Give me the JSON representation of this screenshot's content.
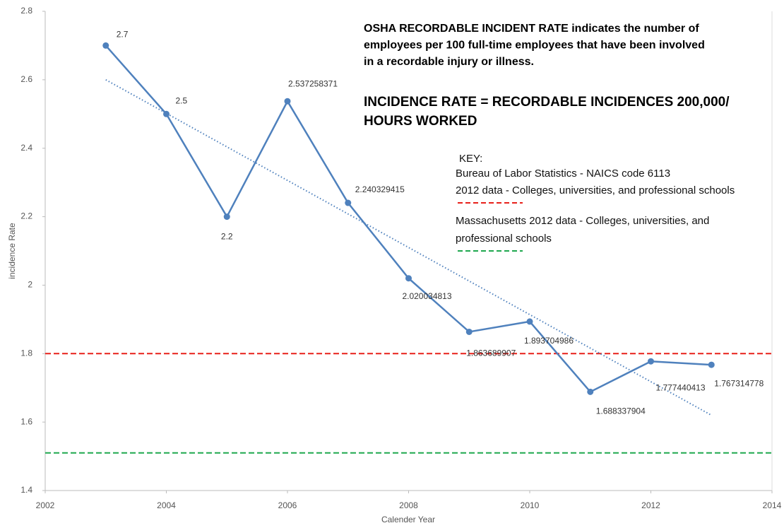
{
  "chart_data": {
    "type": "line",
    "x_label": "Calender Year",
    "y_label": "incidence Rate",
    "x": [
      2003,
      2004,
      2005,
      2006,
      2007,
      2008,
      2009,
      2010,
      2011,
      2012,
      2013
    ],
    "series": [
      {
        "color": "#4f81bd",
        "values": [
          2.7,
          2.5,
          2.2,
          2.537258371,
          2.240329415,
          2.020034813,
          1.863689907,
          1.893704986,
          1.688337904,
          1.777440413,
          1.767314778
        ]
      }
    ],
    "trendline": {
      "x": [
        2003,
        2013
      ],
      "values": [
        2.6,
        1.62
      ],
      "color": "#4f81bd"
    },
    "reference_lines": [
      {
        "value": 1.8,
        "color": "#e8201a",
        "label": [
          "Bureau of Labor Statistics - NAICS code 6113",
          "2012 data - Colleges, universities, and professional schools"
        ]
      },
      {
        "value": 1.51,
        "color": "#1fa84f",
        "label": [
          "Massachusetts 2012 data - Colleges, universities, and",
          "professional schools"
        ]
      }
    ],
    "key_title": "KEY:",
    "description": [
      "OSHA RECORDABLE INCIDENT RATE indicates the number of",
      "employees per 100 full-time employees that have been involved",
      "in a recordable injury or illness."
    ],
    "formula": [
      "INCIDENCE RATE = RECORDABLE INCIDENCES  200,000/",
      "HOURS WORKED"
    ],
    "xlim": [
      2002,
      2014
    ],
    "xticks": [
      2002,
      2004,
      2006,
      2008,
      2010,
      2012,
      2014
    ],
    "ylim": [
      1.4,
      2.8
    ],
    "yticks": [
      1.4,
      1.6,
      1.8,
      2,
      2.2,
      2.4,
      2.6,
      2.8
    ]
  }
}
